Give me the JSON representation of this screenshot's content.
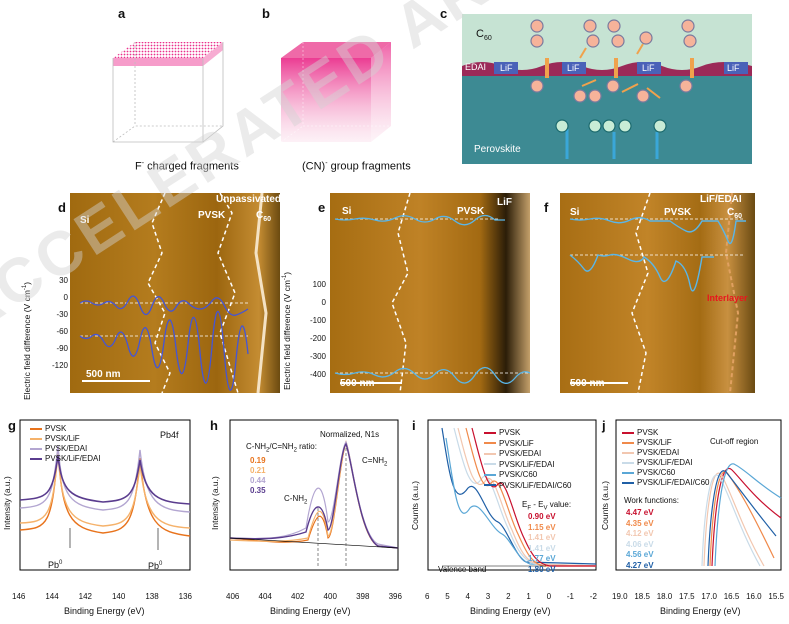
{
  "panels": {
    "a": {
      "label": "a",
      "caption_main": "F",
      "caption_sup": "-",
      "caption_rest": " charged fragments"
    },
    "b": {
      "label": "b",
      "caption_main": "(CN)",
      "caption_sup": "-",
      "caption_rest": " group fragments"
    },
    "c": {
      "label": "c",
      "c60": "C",
      "c60_sub": "60",
      "edai": "EDAI",
      "lif": "LiF",
      "perovskite": "Perovskite",
      "minus": "-",
      "plus": "+"
    },
    "d": {
      "label": "d",
      "si": "Si",
      "pvsk": "PVSK",
      "c60": "C",
      "c60_sub": "60",
      "title": "Unpassivated",
      "scale": "500 nm",
      "ylabel": "Electric field difference (V cm",
      "ylabel_sup": "-1",
      "ylabel_end": ")",
      "ticks": [
        "30",
        "0",
        "-30",
        "-60",
        "-90",
        "-120"
      ]
    },
    "e": {
      "label": "e",
      "si": "Si",
      "pvsk": "PVSK",
      "lif": "LiF",
      "scale": "500 nm",
      "ylabel": "Electric field difference (V cm",
      "ylabel_sup": "-1",
      "ylabel_end": ")",
      "ticks": [
        "100",
        "0",
        "-100",
        "-200",
        "-300",
        "-400"
      ]
    },
    "f": {
      "label": "f",
      "si": "Si",
      "pvsk": "PVSK",
      "c60": "C",
      "c60_sub": "60",
      "title": "LiF/EDAI",
      "interlayer": "Interlayer",
      "scale": "500 nm"
    },
    "g": {
      "label": "g",
      "title": "Pb4f",
      "xlabel": "Binding Energy (eV)",
      "ylabel": "Intensity (a.u.)",
      "ticks": [
        "146",
        "144",
        "142",
        "140",
        "138",
        "136"
      ],
      "pb0": "Pb",
      "pb0_sup": "0",
      "legend": [
        "PVSK",
        "PVSK/LiF",
        "PVSK/EDAI",
        "PVSK/LiF/EDAI"
      ]
    },
    "h": {
      "label": "h",
      "title": "Normalized, N1s",
      "ratio": "C-NH",
      "ratio_sub": "2",
      "ratio_mid": "/C=NH",
      "ratio_sub2": "2",
      "ratio_end": " ratio:",
      "ratios": [
        "0.19",
        "0.21",
        "0.44",
        "0.35"
      ],
      "c_nh2": "C-NH",
      "c_nh2_sub": "2",
      "c_eq_nh2": "C=NH",
      "c_eq_nh2_sub": "2",
      "xlabel": "Binding Energy (eV)",
      "ylabel": "Intensity (a.u.)",
      "ticks": [
        "406",
        "404",
        "402",
        "400",
        "398",
        "396"
      ]
    },
    "i": {
      "label": "i",
      "xlabel": "Binding Energy (eV)",
      "ylabel": "Counts (a.u.)",
      "valence": "Valence band",
      "ef_title": "E",
      "ef_sub": "F",
      "ef_mid": " - E",
      "ev_sub": "V",
      "ef_end": " value:",
      "ticks": [
        "6",
        "5",
        "4",
        "3",
        "2",
        "1",
        "0",
        "-1",
        "-2"
      ],
      "legend": [
        "PVSK",
        "PVSK/LiF",
        "PVSK/EDAI",
        "PVSK/LiF/EDAI",
        "PVSK/C60",
        "PVSK/LiF/EDAI/C60"
      ],
      "values": [
        "0.90 eV",
        "1.15 eV",
        "1.41 eV",
        "1.41 eV",
        "1.77 eV",
        "1.80 eV"
      ]
    },
    "j": {
      "label": "j",
      "xlabel": "Binding Energy (eV)",
      "ylabel": "Counts (a.u.)",
      "cutoff": "Cut-off region",
      "wf_title": "Work functions:",
      "ticks": [
        "19.0",
        "18.5",
        "18.0",
        "17.5",
        "17.0",
        "16.5",
        "16.0",
        "15.5"
      ],
      "legend": [
        "PVSK",
        "PVSK/LiF",
        "PVSK/EDAI",
        "PVSK/LiF/EDAI",
        "PVSK/C60",
        "PVSK/LiF/EDAI/C60"
      ],
      "values": [
        "4.47 eV",
        "4.35 eV",
        "4.12 eV",
        "4.06 eV",
        "4.56 eV",
        "4.27 eV"
      ]
    }
  },
  "colors": {
    "s1": "#c8102e",
    "s2": "#f08a4b",
    "s3": "#f2c7b0",
    "s4": "#c9dbe8",
    "s5": "#5aa7d6",
    "s6": "#1f5fa6",
    "g1": "#e8731c",
    "g2": "#f5b26b",
    "g3": "#b3a6d1",
    "g4": "#5a3c8e"
  },
  "watermark": "ACCELERATED ARTICLE PREVIEW"
}
